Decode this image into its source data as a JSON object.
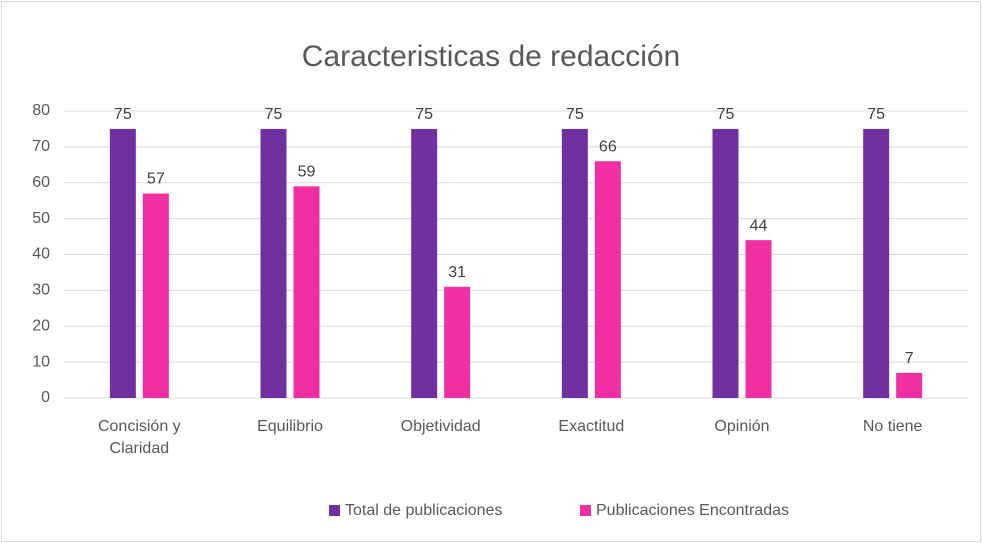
{
  "chart_data": {
    "type": "bar",
    "title": "Caracteristicas de redacción",
    "categories": [
      "Concisión y Claridad",
      "Equilibrio",
      "Objetividad",
      "Exactitud",
      "Opinión",
      "No tiene"
    ],
    "series": [
      {
        "name": "Total de publicaciones",
        "color": "#7030a0",
        "values": [
          75,
          75,
          75,
          75,
          75,
          75
        ]
      },
      {
        "name": "Publicaciones Encontradas",
        "color": "#f02fa5",
        "values": [
          57,
          59,
          31,
          66,
          44,
          7
        ]
      }
    ],
    "ylim": [
      0,
      80
    ],
    "yticks": [
      0,
      10,
      20,
      30,
      40,
      50,
      60,
      70,
      80
    ],
    "grid": true,
    "legend": "bottom"
  }
}
